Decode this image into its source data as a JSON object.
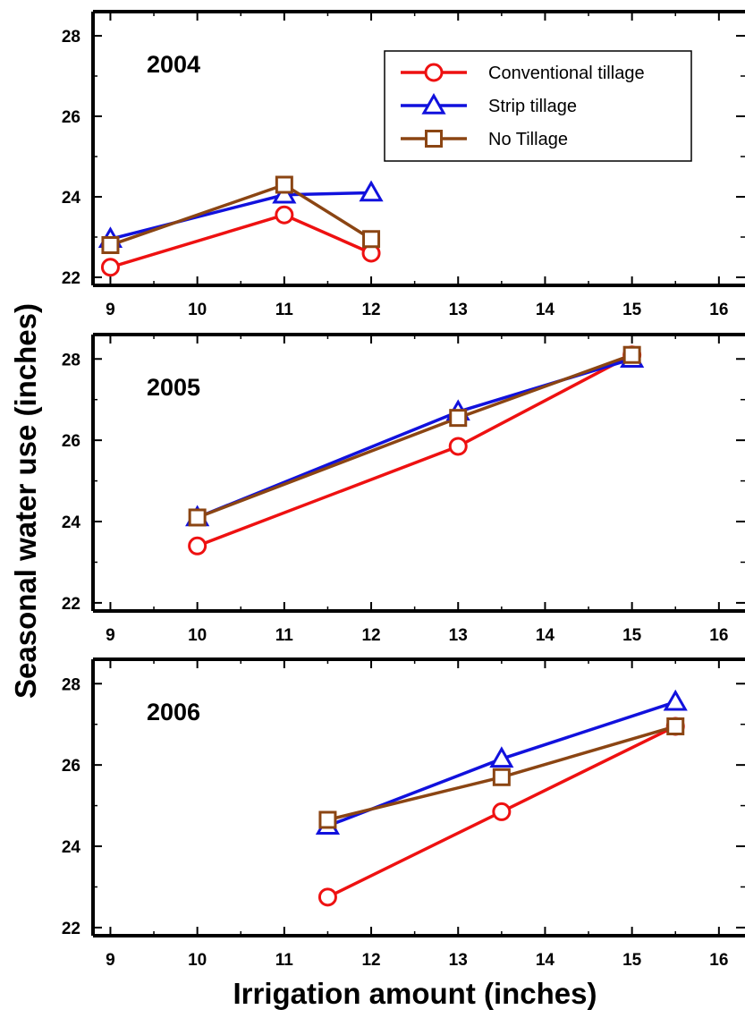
{
  "ylabel": "Seasonal water use (inches)",
  "xlabel": "Irrigation amount (inches)",
  "colors": {
    "conventional": "#ee1111",
    "strip": "#1111dd",
    "notill": "#8b4513",
    "axis": "#000000"
  },
  "legend": {
    "placement": "top-right of first panel",
    "items": [
      {
        "label": "Conventional tillage",
        "marker": "circle",
        "color": "#ee1111"
      },
      {
        "label": "Strip tillage",
        "marker": "triangle",
        "color": "#1111dd"
      },
      {
        "label": "No Tillage",
        "marker": "square",
        "color": "#8b4513"
      }
    ]
  },
  "chart_data": [
    {
      "type": "line",
      "panel_label": "2004",
      "xlim": [
        8.8,
        16.3
      ],
      "ylim": [
        21.8,
        28.6
      ],
      "xticks": [
        9,
        10,
        11,
        12,
        13,
        14,
        15,
        16
      ],
      "yticks": [
        22,
        24,
        26,
        28
      ],
      "grid": false,
      "series": [
        {
          "name": "Conventional tillage",
          "x": [
            9,
            11,
            12
          ],
          "y": [
            22.25,
            23.55,
            22.6
          ]
        },
        {
          "name": "Strip tillage",
          "x": [
            9,
            11,
            12
          ],
          "y": [
            22.95,
            24.05,
            24.1
          ]
        },
        {
          "name": "No Tillage",
          "x": [
            9,
            11,
            12
          ],
          "y": [
            22.8,
            24.3,
            22.95
          ]
        }
      ]
    },
    {
      "type": "line",
      "panel_label": "2005",
      "xlim": [
        8.8,
        16.3
      ],
      "ylim": [
        21.8,
        28.6
      ],
      "xticks": [
        9,
        10,
        11,
        12,
        13,
        14,
        15,
        16
      ],
      "yticks": [
        22,
        24,
        26,
        28
      ],
      "grid": false,
      "series": [
        {
          "name": "Conventional tillage",
          "x": [
            10,
            13,
            15
          ],
          "y": [
            23.4,
            25.85,
            28.1
          ]
        },
        {
          "name": "Strip tillage",
          "x": [
            10,
            13,
            15
          ],
          "y": [
            24.1,
            26.7,
            28.0
          ]
        },
        {
          "name": "No Tillage",
          "x": [
            10,
            13,
            15
          ],
          "y": [
            24.1,
            26.55,
            28.1
          ]
        }
      ]
    },
    {
      "type": "line",
      "panel_label": "2006",
      "xlim": [
        8.8,
        16.3
      ],
      "ylim": [
        21.8,
        28.6
      ],
      "xticks": [
        9,
        10,
        11,
        12,
        13,
        14,
        15,
        16
      ],
      "yticks": [
        22,
        24,
        26,
        28
      ],
      "grid": false,
      "series": [
        {
          "name": "Conventional tillage",
          "x": [
            11.5,
            13.5,
            15.5
          ],
          "y": [
            22.75,
            24.85,
            26.95
          ]
        },
        {
          "name": "Strip tillage",
          "x": [
            11.5,
            13.5,
            15.5
          ],
          "y": [
            24.5,
            26.15,
            27.55
          ]
        },
        {
          "name": "No Tillage",
          "x": [
            11.5,
            13.5,
            15.5
          ],
          "y": [
            24.65,
            25.7,
            26.95
          ]
        }
      ]
    }
  ]
}
